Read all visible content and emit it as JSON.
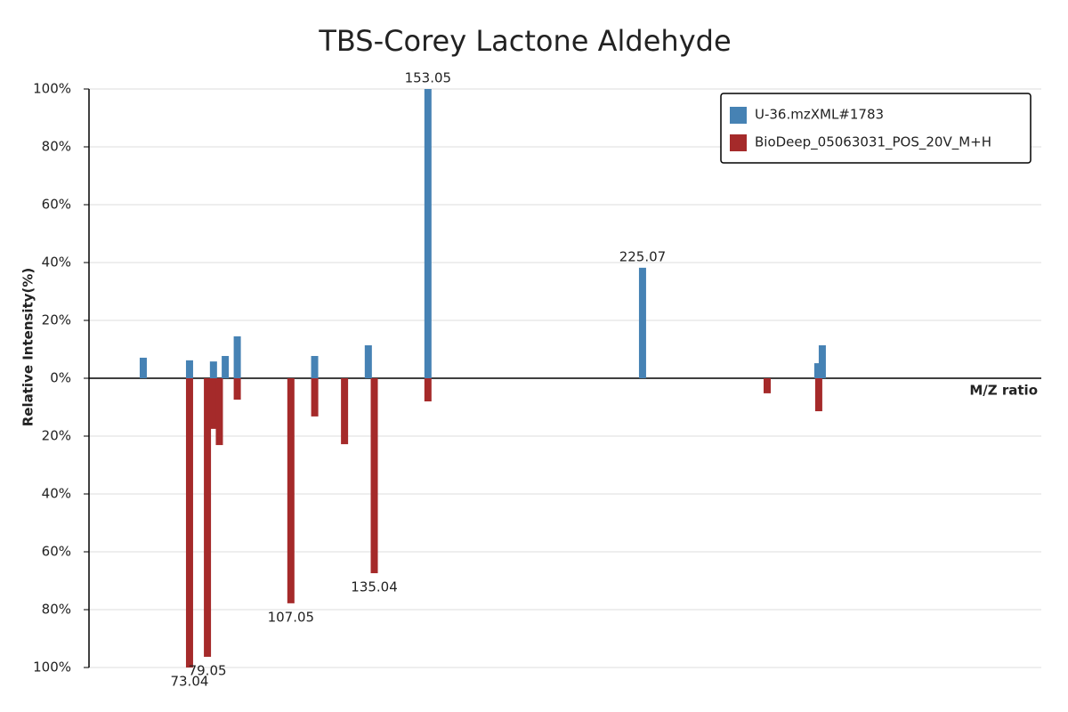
{
  "chart_data": {
    "type": "mirror-bar",
    "title": "TBS-Corey Lactone Aldehyde",
    "y_label": "Relative Intensity(%)",
    "x_label": "M/Z ratio",
    "xlim": [
      39.3,
      358.9
    ],
    "ylim": [
      -100,
      100
    ],
    "yticks": [
      {
        "value": -100,
        "label": "100%"
      },
      {
        "value": -80,
        "label": "80%"
      },
      {
        "value": -60,
        "label": "60%"
      },
      {
        "value": -40,
        "label": "40%"
      },
      {
        "value": -20,
        "label": "20%"
      },
      {
        "value": 0,
        "label": "0%"
      },
      {
        "value": 20,
        "label": "20%"
      },
      {
        "value": 40,
        "label": "40%"
      },
      {
        "value": 60,
        "label": "60%"
      },
      {
        "value": 80,
        "label": "80%"
      },
      {
        "value": 100,
        "label": "100%"
      }
    ],
    "grid": true,
    "legend": "top-right",
    "series": [
      {
        "name": "U-36.mzXML#1783",
        "color": "#4682b4",
        "x": [
          57.51,
          73.04,
          81.07,
          85.03,
          89.06,
          115.03,
          133.04,
          153.05,
          225.07,
          283.9,
          285.4
        ],
        "values": [
          7.1,
          6.2,
          5.8,
          7.7,
          14.5,
          7.7,
          11.4,
          100,
          38.2,
          5.2,
          11.4
        ]
      },
      {
        "name": "BioDeep_05063031_POS_20V_M+H",
        "color": "#a52a2a",
        "x": [
          73.04,
          79.05,
          81.07,
          83.05,
          89.06,
          107.05,
          115.05,
          125.06,
          135.04,
          153.05,
          266.9,
          284.2
        ],
        "values": [
          -100,
          -96.3,
          -17.5,
          -23.1,
          -7.4,
          -77.8,
          -13.2,
          -22.8,
          -67.4,
          -8.0,
          -5.2,
          -11.4
        ]
      }
    ]
  }
}
